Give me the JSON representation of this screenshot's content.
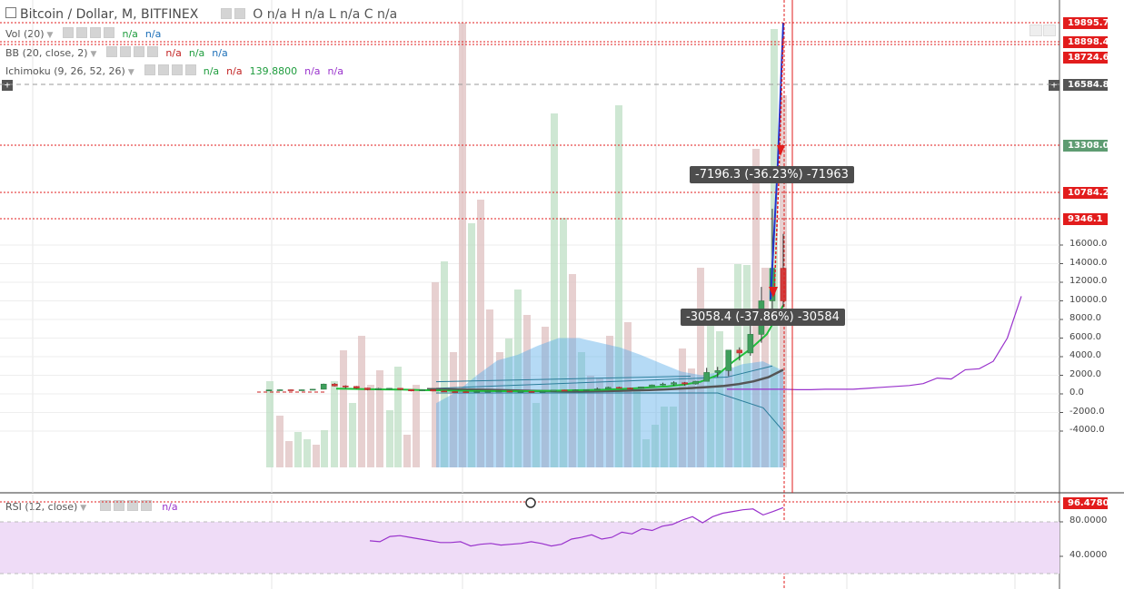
{
  "header": {
    "symbol": "Bitcoin / Dollar, M, BITFINEX",
    "ohlc": "O n/a   H n/a   L n/a   C n/a"
  },
  "indicators": [
    {
      "label": "Vol (20)",
      "values": [
        {
          "text": "n/a",
          "color": "#1e9c3d"
        },
        {
          "text": "n/a",
          "color": "#1c6fb8"
        }
      ]
    },
    {
      "label": "BB (20, close, 2)",
      "values": [
        {
          "text": "n/a",
          "color": "#c22222"
        },
        {
          "text": "n/a",
          "color": "#1e9c3d"
        },
        {
          "text": "n/a",
          "color": "#1c6fb8"
        }
      ]
    },
    {
      "label": "Ichimoku (9, 26, 52, 26)",
      "values": [
        {
          "text": "n/a",
          "color": "#1e9c3d"
        },
        {
          "text": "n/a",
          "color": "#c22222"
        },
        {
          "text": "139.8800",
          "color": "#1e9c3d"
        },
        {
          "text": "n/a",
          "color": "#9932cc"
        },
        {
          "text": "n/a",
          "color": "#9932cc"
        }
      ]
    }
  ],
  "rsi": {
    "label": "RSI (12, close)",
    "value": "n/a"
  },
  "annotations": {
    "measure_top": "-7196.3 (-36.23%) -71963",
    "measure_bottom": "-3058.4 (-37.86%) -30584"
  },
  "price_tags": {
    "p1": "19895.7",
    "p2": "18898.4",
    "p3": "18724.6",
    "p4": "16584.8",
    "p5": "13308.0",
    "p6": "10784.2",
    "p7": "9346.1",
    "rsi": "96.4780"
  },
  "colors": {
    "up": "#3f9f5c",
    "down": "#d23c3c",
    "cloud": "#5aaee8",
    "rsi_band": "#efdcf7",
    "rsi_line": "#9932cc",
    "lagging": "#9932cc",
    "conversion": "#1fbf3a",
    "base": "#555555",
    "marker_line": "#e21c1c"
  },
  "chart_data": [
    {
      "type": "candlestick",
      "title": "Bitcoin / Dollar, M, BITFINEX",
      "ylim": [
        -4500,
        21000
      ],
      "yticks": [
        -4000,
        -2000,
        0,
        2000,
        4000,
        6000,
        8000,
        10000,
        12000,
        14000,
        16000
      ],
      "ytick_labels": [
        "-4000.0",
        "-2000.0",
        "0.0",
        "2000.0",
        "4000.0",
        "6000.0",
        "8000.0",
        "10000.0",
        "12000.0",
        "14000.0",
        "16000.0"
      ],
      "price_lines": [
        19895.7,
        18898.4,
        18724.6,
        16584.8,
        13308.0,
        10784.2,
        9346.1
      ],
      "candles": [
        {
          "o": 400,
          "h": 450,
          "l": 360,
          "c": 420
        },
        {
          "o": 420,
          "h": 480,
          "l": 380,
          "c": 440
        },
        {
          "o": 440,
          "h": 470,
          "l": 400,
          "c": 430
        },
        {
          "o": 430,
          "h": 460,
          "l": 400,
          "c": 440
        },
        {
          "o": 440,
          "h": 520,
          "l": 420,
          "c": 500
        },
        {
          "o": 500,
          "h": 1100,
          "l": 480,
          "c": 1050
        },
        {
          "o": 1050,
          "h": 1160,
          "l": 800,
          "c": 850
        },
        {
          "o": 850,
          "h": 920,
          "l": 600,
          "c": 800
        },
        {
          "o": 800,
          "h": 850,
          "l": 550,
          "c": 630
        },
        {
          "o": 630,
          "h": 660,
          "l": 380,
          "c": 450
        },
        {
          "o": 450,
          "h": 640,
          "l": 420,
          "c": 580
        },
        {
          "o": 580,
          "h": 620,
          "l": 470,
          "c": 600
        },
        {
          "o": 600,
          "h": 610,
          "l": 420,
          "c": 470
        },
        {
          "o": 470,
          "h": 480,
          "l": 270,
          "c": 320
        },
        {
          "o": 320,
          "h": 470,
          "l": 290,
          "c": 450
        },
        {
          "o": 450,
          "h": 480,
          "l": 280,
          "c": 310
        },
        {
          "o": 310,
          "h": 360,
          "l": 230,
          "c": 240
        },
        {
          "o": 240,
          "h": 260,
          "l": 160,
          "c": 230
        },
        {
          "o": 230,
          "h": 260,
          "l": 210,
          "c": 220
        },
        {
          "o": 220,
          "h": 300,
          "l": 210,
          "c": 260
        },
        {
          "o": 260,
          "h": 300,
          "l": 240,
          "c": 280
        },
        {
          "o": 280,
          "h": 330,
          "l": 260,
          "c": 300
        },
        {
          "o": 300,
          "h": 320,
          "l": 180,
          "c": 240
        },
        {
          "o": 240,
          "h": 280,
          "l": 220,
          "c": 260
        },
        {
          "o": 260,
          "h": 280,
          "l": 200,
          "c": 230
        },
        {
          "o": 230,
          "h": 280,
          "l": 220,
          "c": 270
        },
        {
          "o": 270,
          "h": 440,
          "l": 260,
          "c": 410
        },
        {
          "o": 410,
          "h": 450,
          "l": 350,
          "c": 370
        },
        {
          "o": 370,
          "h": 480,
          "l": 360,
          "c": 420
        },
        {
          "o": 420,
          "h": 470,
          "l": 410,
          "c": 450
        },
        {
          "o": 450,
          "h": 680,
          "l": 440,
          "c": 530
        },
        {
          "o": 530,
          "h": 780,
          "l": 520,
          "c": 700
        },
        {
          "o": 700,
          "h": 770,
          "l": 600,
          "c": 620
        },
        {
          "o": 620,
          "h": 680,
          "l": 550,
          "c": 600
        },
        {
          "o": 600,
          "h": 760,
          "l": 580,
          "c": 750
        },
        {
          "o": 750,
          "h": 1000,
          "l": 740,
          "c": 960
        },
        {
          "o": 960,
          "h": 1200,
          "l": 900,
          "c": 1050
        },
        {
          "o": 1050,
          "h": 1350,
          "l": 900,
          "c": 1200
        },
        {
          "o": 1200,
          "h": 1280,
          "l": 890,
          "c": 1070
        },
        {
          "o": 1070,
          "h": 1400,
          "l": 1000,
          "c": 1350
        },
        {
          "o": 1350,
          "h": 2800,
          "l": 1330,
          "c": 2300
        },
        {
          "o": 2300,
          "h": 2900,
          "l": 1800,
          "c": 2500
        },
        {
          "o": 2500,
          "h": 4500,
          "l": 1900,
          "c": 4700
        },
        {
          "o": 4700,
          "h": 5000,
          "l": 3600,
          "c": 4400
        },
        {
          "o": 4400,
          "h": 7500,
          "l": 4100,
          "c": 6400
        },
        {
          "o": 6400,
          "h": 11500,
          "l": 5500,
          "c": 10000
        },
        {
          "o": 10000,
          "h": 19895,
          "l": 9000,
          "c": 13500
        },
        {
          "o": 13500,
          "h": 17200,
          "l": 9300,
          "c": 10000
        }
      ],
      "bollinger": {
        "upper": 1300,
        "middle": 600,
        "lower": 100
      },
      "conversion_line": [
        560,
        540,
        500,
        480,
        460,
        420,
        380,
        330,
        320,
        300,
        290,
        280,
        300,
        330,
        380,
        400,
        440,
        520,
        600,
        700,
        800,
        1000,
        1300,
        2000,
        3500,
        4800,
        6400,
        9500
      ],
      "base_line": [
        520,
        500,
        480,
        460,
        440,
        400,
        360,
        330,
        300,
        280,
        270,
        280,
        300,
        330,
        380,
        420,
        480,
        560,
        640,
        740,
        860,
        1050,
        1350,
        1800,
        2600
      ],
      "cloud_top": [
        -1000,
        200,
        2000,
        3600,
        4200,
        5200,
        6000,
        6000,
        5500,
        5000,
        4200,
        3300,
        2400,
        2000,
        2400,
        3200,
        3500,
        2500
      ],
      "lagging_span": [
        500,
        500,
        500,
        500,
        500,
        450,
        450,
        500,
        500,
        500,
        600,
        700,
        800,
        900,
        1100,
        1700,
        1600,
        2600,
        2700,
        3500,
        6000,
        10500
      ]
    },
    {
      "type": "line",
      "title": "RSI (12, close)",
      "ylim": [
        20,
        100
      ],
      "yticks": [
        40,
        80
      ],
      "ytick_labels": [
        "40.0000",
        "80.0000"
      ],
      "values": [
        58,
        57,
        63,
        64,
        62,
        60,
        58,
        56,
        56,
        57,
        52,
        54,
        55,
        53,
        54,
        55,
        57,
        55,
        52,
        54,
        60,
        62,
        65,
        60,
        62,
        68,
        66,
        72,
        70,
        75,
        77,
        82,
        86,
        79,
        86,
        90,
        92,
        94,
        95,
        88,
        92,
        96.478
      ],
      "last_value": 96.478
    }
  ]
}
